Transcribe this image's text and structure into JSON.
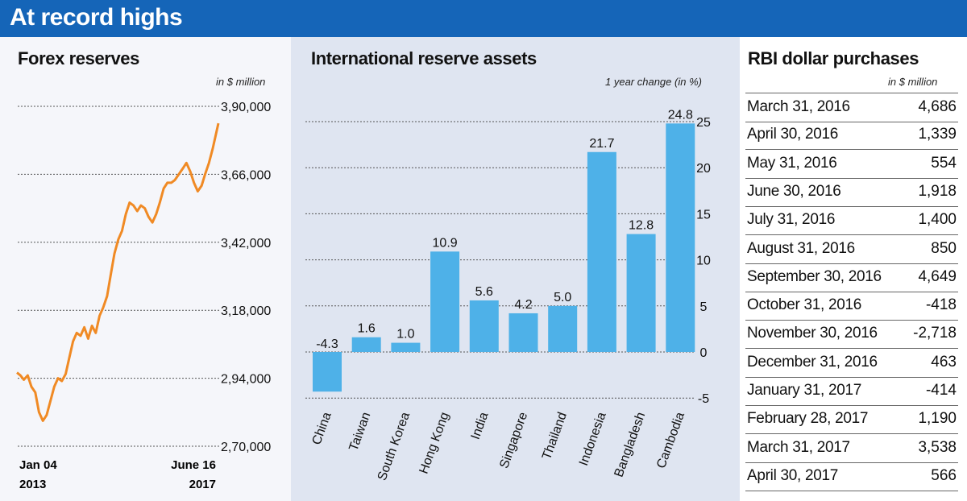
{
  "header": {
    "title": "At record highs"
  },
  "forex": {
    "title": "Forex reserves",
    "unit": "in $ million",
    "y_ticks": [
      "3,90,000",
      "3,66,000",
      "3,42,000",
      "3,18,000",
      "2,94,000",
      "2,70,000"
    ],
    "x_labels": [
      {
        "line1": "Jan 04",
        "line2": "2013"
      },
      {
        "line1": "June 16",
        "line2": "2017"
      }
    ]
  },
  "intl": {
    "title": "International reserve assets",
    "unit": "1 year change (in %)",
    "y_ticks": [
      "25",
      "20",
      "15",
      "10",
      "5",
      "0",
      "-5"
    ],
    "bar_labels": [
      "-4.3",
      "1.6",
      "1.0",
      "10.9",
      "5.6",
      "4.2",
      "5.0",
      "21.7",
      "12.8",
      "24.8"
    ]
  },
  "rbi": {
    "title": "RBI dollar purchases",
    "unit": "in $ million",
    "rows": [
      {
        "date": "March 31, 2016",
        "value": "4,686"
      },
      {
        "date": "April 30, 2016",
        "value": "1,339"
      },
      {
        "date": "May 31, 2016",
        "value": "554"
      },
      {
        "date": "June 30, 2016",
        "value": "1,918"
      },
      {
        "date": "July 31, 2016",
        "value": "1,400"
      },
      {
        "date": "August 31, 2016",
        "value": "850"
      },
      {
        "date": "September 30, 2016",
        "value": "4,649"
      },
      {
        "date": "October 31, 2016",
        "value": "-418"
      },
      {
        "date": "November 30, 2016",
        "value": "-2,718"
      },
      {
        "date": "December 31, 2016",
        "value": "463"
      },
      {
        "date": "January 31, 2017",
        "value": "-414"
      },
      {
        "date": "February 28, 2017",
        "value": "1,190"
      },
      {
        "date": "March 31, 2017",
        "value": "3,538"
      },
      {
        "date": "April 30, 2017",
        "value": "566"
      }
    ]
  },
  "chart_data": [
    {
      "type": "line",
      "title": "Forex reserves",
      "ylabel": "in $ million",
      "ylim": [
        270000,
        390000
      ],
      "grid": true,
      "x_range": [
        "Jan 04 2013",
        "June 16 2017"
      ],
      "series": [
        {
          "color": "#f08a24",
          "x": [
            "2013-01-04",
            "2013-02-01",
            "2013-03-01",
            "2013-04-01",
            "2013-05-01",
            "2013-06-01",
            "2013-07-01",
            "2013-08-01",
            "2013-09-01",
            "2013-10-01",
            "2013-11-01",
            "2013-12-01",
            "2014-01-01",
            "2014-02-01",
            "2014-03-01",
            "2014-04-01",
            "2014-05-01",
            "2014-06-01",
            "2014-07-01",
            "2014-08-01",
            "2014-09-01",
            "2014-10-01",
            "2014-11-01",
            "2014-12-01",
            "2015-01-01",
            "2015-02-01",
            "2015-03-01",
            "2015-04-01",
            "2015-05-01",
            "2015-06-01",
            "2015-07-01",
            "2015-08-01",
            "2015-09-01",
            "2015-10-01",
            "2015-11-01",
            "2015-12-01",
            "2016-01-01",
            "2016-02-01",
            "2016-03-01",
            "2016-04-01",
            "2016-05-01",
            "2016-06-01",
            "2016-07-01",
            "2016-08-01",
            "2016-09-01",
            "2016-10-01",
            "2016-11-01",
            "2016-12-01",
            "2017-01-01",
            "2017-02-01",
            "2017-03-01",
            "2017-04-01",
            "2017-05-01",
            "2017-06-16"
          ],
          "y": [
            296000,
            295000,
            293500,
            295000,
            291000,
            289000,
            282000,
            279000,
            281000,
            286000,
            291000,
            294000,
            293000,
            295500,
            301000,
            307000,
            310000,
            309000,
            312000,
            308000,
            312500,
            310000,
            316000,
            319000,
            323000,
            331000,
            338000,
            343000,
            346000,
            352000,
            356000,
            355000,
            353000,
            355000,
            354000,
            351000,
            349000,
            352000,
            356000,
            361000,
            363000,
            363000,
            364000,
            366000,
            368000,
            370000,
            367000,
            363000,
            360000,
            362000,
            366000,
            370000,
            375000,
            384000
          ]
        }
      ]
    },
    {
      "type": "bar",
      "title": "International reserve assets",
      "ylabel": "1 year change (in %)",
      "ylim": [
        -5,
        25
      ],
      "grid": true,
      "categories": [
        "China",
        "Taiwan",
        "South Korea",
        "Hong Kong",
        "India",
        "Singapore",
        "Thailand",
        "Indonesia",
        "Bangladesh",
        "Cambodia"
      ],
      "values": [
        -4.3,
        1.6,
        1.0,
        10.9,
        5.6,
        4.2,
        5.0,
        21.7,
        12.8,
        24.8
      ],
      "color": "#4eb1e8"
    },
    {
      "type": "table",
      "title": "RBI dollar purchases",
      "unit": "in $ million",
      "columns": [
        "date",
        "value"
      ]
    }
  ]
}
